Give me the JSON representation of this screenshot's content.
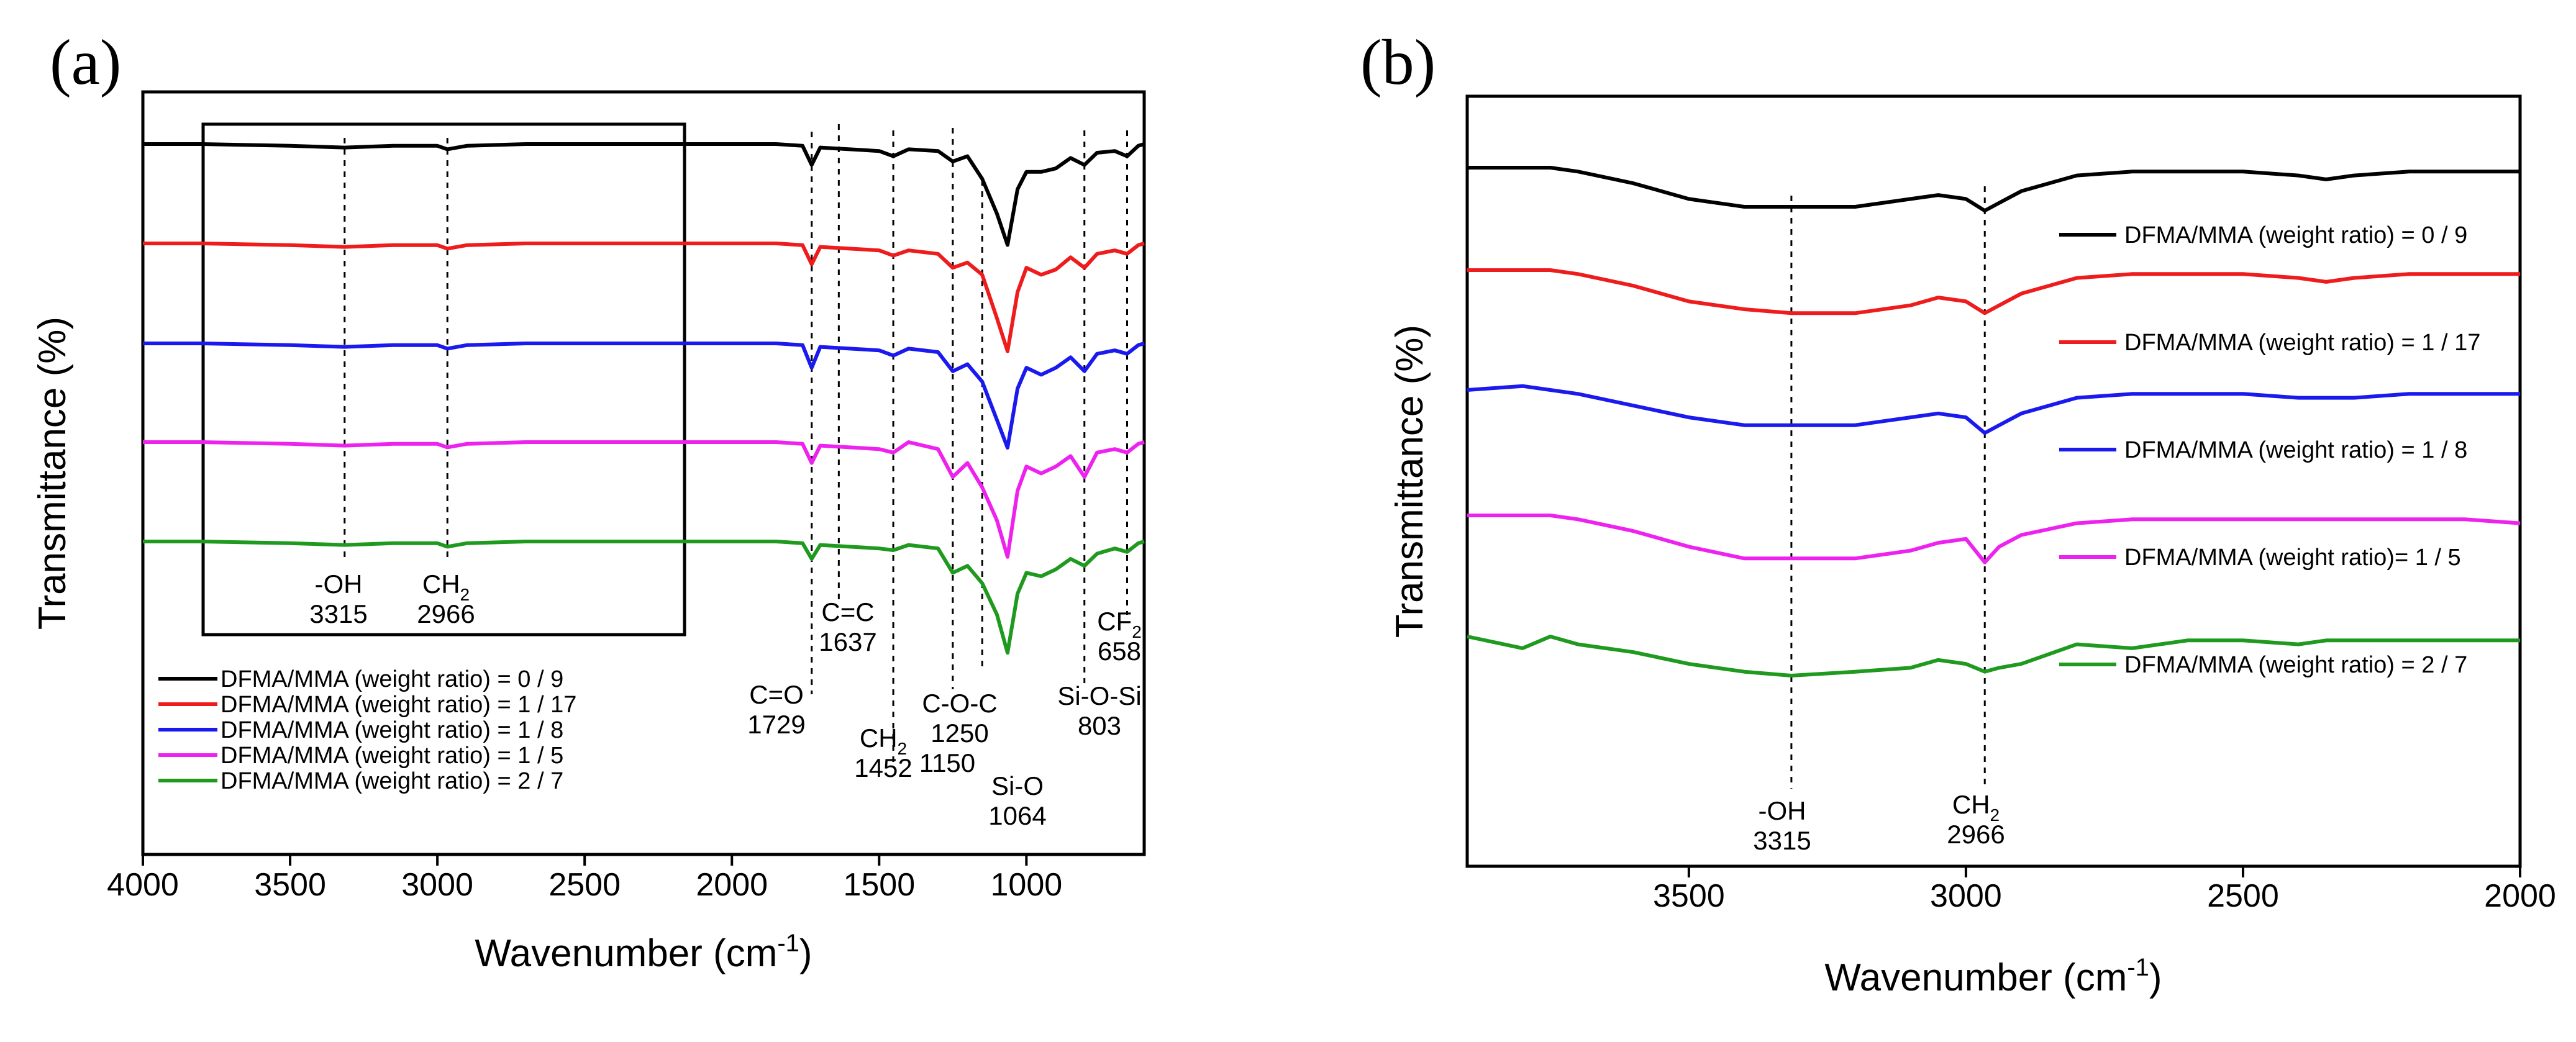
{
  "panels": {
    "a": {
      "label": "(a)",
      "xlabel_main": "Wavenumber (cm",
      "xlabel_sup": "-1",
      "xlabel_end": ")",
      "ylabel": "Transmittance (%)",
      "legend": [
        "DFMA/MMA (weight ratio) = 0 / 9",
        "DFMA/MMA (weight ratio) = 1 / 17",
        "DFMA/MMA (weight ratio) = 1 / 8",
        "DFMA/MMA (weight ratio) = 1 / 5",
        "DFMA/MMA (weight ratio) = 2 / 7"
      ],
      "annotations": [
        {
          "name": "-OH",
          "value": "3315",
          "wavenumber": 3315
        },
        {
          "name": "CH",
          "sub": "2",
          "value": "2966",
          "wavenumber": 2966
        },
        {
          "name": "C=C",
          "value": "1637",
          "wavenumber": 1637
        },
        {
          "name": "C=O",
          "value": "1729",
          "wavenumber": 1729
        },
        {
          "name": "CH",
          "sub": "2",
          "value": "1452",
          "wavenumber": 1452
        },
        {
          "name": "C-O-C",
          "value": "1250",
          "value2": "1150",
          "wavenumber": 1250
        },
        {
          "name": "Si-O",
          "value": "1064",
          "wavenumber": 1064
        },
        {
          "name": "Si-O-Si",
          "value": "803",
          "wavenumber": 803
        },
        {
          "name": "CF",
          "sub": "2",
          "value": "658",
          "wavenumber": 658
        }
      ]
    },
    "b": {
      "label": "(b)",
      "xlabel_main": "Wavenumber (cm",
      "xlabel_sup": "-1",
      "xlabel_end": ")",
      "ylabel": "Transmittance (%)",
      "legend": [
        "DFMA/MMA (weight ratio) = 0 / 9",
        "DFMA/MMA (weight ratio) = 1 / 17",
        "DFMA/MMA (weight ratio) = 1 / 8",
        "DFMA/MMA (weight ratio)= 1 / 5",
        "DFMA/MMA (weight ratio) = 2 / 7"
      ],
      "annotations": [
        {
          "name": "-OH",
          "value": "3315",
          "wavenumber": 3315
        },
        {
          "name": "CH",
          "sub": "2",
          "value": "2966",
          "wavenumber": 2966
        }
      ]
    }
  },
  "chart_data": [
    {
      "type": "line",
      "panel": "a",
      "title": "",
      "xlabel": "Wavenumber (cm-1)",
      "ylabel": "Transmittance (%)",
      "xlim": [
        4000,
        600
      ],
      "x_ticks": [
        4000,
        3500,
        3000,
        2500,
        2000,
        1500,
        1000
      ],
      "y_ticks": [],
      "y_units": "arbitrary, vertically offset traces",
      "peak_markers": [
        3315,
        2966,
        1729,
        1637,
        1452,
        1250,
        1150,
        803,
        658
      ],
      "colors": [
        "#000000",
        "#ee1c1c",
        "#1a1aee",
        "#ee22ee",
        "#1f9a1f"
      ],
      "series": [
        {
          "name": "DFMA/MMA (weight ratio) = 0 / 9",
          "x": [
            4000,
            3800,
            3500,
            3315,
            3150,
            3000,
            2966,
            2900,
            2700,
            2500,
            2000,
            1850,
            1760,
            1729,
            1700,
            1600,
            1500,
            1452,
            1400,
            1300,
            1250,
            1200,
            1150,
            1100,
            1064,
            1030,
            1000,
            950,
            900,
            850,
            803,
            760,
            700,
            658,
            620,
            600
          ],
          "y": [
            100,
            100,
            99,
            98,
            99,
            99,
            97,
            99,
            100,
            100,
            100,
            100,
            99,
            88,
            98,
            97,
            96,
            93,
            97,
            96,
            90,
            93,
            80,
            60,
            42,
            74,
            84,
            84,
            86,
            92,
            88,
            95,
            96,
            93,
            99,
            100
          ]
        },
        {
          "name": "DFMA/MMA (weight ratio) = 1 / 17",
          "x": [
            4000,
            3800,
            3500,
            3315,
            3150,
            3000,
            2966,
            2900,
            2700,
            2500,
            2000,
            1850,
            1760,
            1729,
            1700,
            1600,
            1500,
            1452,
            1400,
            1300,
            1250,
            1200,
            1150,
            1100,
            1064,
            1030,
            1000,
            950,
            900,
            850,
            803,
            760,
            700,
            658,
            620,
            600
          ],
          "y": [
            100,
            100,
            99,
            98,
            99,
            99,
            97,
            99,
            100,
            100,
            100,
            100,
            99,
            88,
            98,
            97,
            96,
            93,
            96,
            94,
            86,
            89,
            82,
            57,
            38,
            72,
            86,
            82,
            85,
            92,
            86,
            94,
            96,
            94,
            99,
            100
          ]
        },
        {
          "name": "DFMA/MMA (weight ratio) = 1 / 8",
          "x": [
            4000,
            3800,
            3500,
            3315,
            3150,
            3000,
            2966,
            2900,
            2700,
            2500,
            2000,
            1850,
            1760,
            1729,
            1700,
            1600,
            1500,
            1452,
            1400,
            1300,
            1250,
            1200,
            1150,
            1100,
            1064,
            1030,
            1000,
            950,
            900,
            850,
            803,
            760,
            700,
            658,
            620,
            600
          ],
          "y": [
            100,
            100,
            99,
            98,
            99,
            99,
            97,
            99,
            100,
            100,
            100,
            100,
            99,
            86,
            98,
            97,
            96,
            93,
            97,
            95,
            84,
            88,
            78,
            56,
            40,
            74,
            86,
            82,
            86,
            92,
            84,
            94,
            96,
            94,
            99,
            100
          ]
        },
        {
          "name": "DFMA/MMA (weight ratio) = 1 / 5",
          "x": [
            4000,
            3800,
            3500,
            3315,
            3150,
            3000,
            2966,
            2900,
            2700,
            2500,
            2000,
            1850,
            1760,
            1729,
            1700,
            1600,
            1500,
            1452,
            1400,
            1300,
            1250,
            1200,
            1150,
            1100,
            1064,
            1030,
            1000,
            950,
            900,
            850,
            803,
            760,
            700,
            658,
            620,
            600
          ],
          "y": [
            100,
            100,
            99,
            98,
            99,
            99,
            97,
            99,
            100,
            100,
            100,
            100,
            99,
            88,
            98,
            97,
            96,
            94,
            100,
            96,
            80,
            88,
            74,
            55,
            34,
            72,
            86,
            82,
            86,
            92,
            80,
            94,
            96,
            94,
            99,
            100
          ]
        },
        {
          "name": "DFMA/MMA (weight ratio) = 2 / 7",
          "x": [
            4000,
            3800,
            3500,
            3315,
            3150,
            3000,
            2966,
            2900,
            2700,
            2500,
            2000,
            1850,
            1760,
            1729,
            1700,
            1600,
            1500,
            1452,
            1400,
            1300,
            1250,
            1200,
            1150,
            1100,
            1064,
            1030,
            1000,
            950,
            900,
            850,
            803,
            760,
            700,
            658,
            620,
            600
          ],
          "y": [
            100,
            100,
            99,
            98,
            99,
            99,
            97,
            99,
            100,
            100,
            100,
            100,
            99,
            90,
            98,
            97,
            96,
            95,
            98,
            96,
            82,
            86,
            76,
            58,
            36,
            70,
            82,
            80,
            84,
            90,
            86,
            93,
            96,
            94,
            99,
            100
          ]
        }
      ]
    },
    {
      "type": "line",
      "panel": "b",
      "title": "",
      "xlabel": "Wavenumber (cm-1)",
      "ylabel": "Transmittance (%)",
      "xlim": [
        3900,
        2000
      ],
      "x_ticks": [
        3500,
        3000,
        2500,
        2000
      ],
      "y_ticks": [],
      "y_units": "arbitrary, vertically offset traces",
      "peak_markers": [
        3315,
        2966
      ],
      "colors": [
        "#000000",
        "#ee1c1c",
        "#1a1aee",
        "#ee22ee",
        "#1f9a1f"
      ],
      "series": [
        {
          "name": "DFMA/MMA (weight ratio) = 0 / 9",
          "x": [
            3900,
            3800,
            3750,
            3700,
            3600,
            3500,
            3400,
            3315,
            3200,
            3100,
            3050,
            3000,
            2966,
            2940,
            2900,
            2800,
            2700,
            2600,
            2500,
            2400,
            2350,
            2300,
            2200,
            2100,
            2000
          ],
          "y": [
            100,
            100,
            100,
            99,
            96,
            92,
            90,
            90,
            90,
            92,
            93,
            92,
            89,
            91,
            94,
            98,
            99,
            99,
            99,
            98,
            97,
            98,
            99,
            99,
            99
          ]
        },
        {
          "name": "DFMA/MMA (weight ratio) = 1 / 17",
          "x": [
            3900,
            3800,
            3750,
            3700,
            3600,
            3500,
            3400,
            3315,
            3200,
            3100,
            3050,
            3000,
            2966,
            2940,
            2900,
            2800,
            2700,
            2600,
            2500,
            2400,
            2350,
            2300,
            2200,
            2100,
            2000
          ],
          "y": [
            100,
            100,
            100,
            99,
            96,
            92,
            90,
            89,
            89,
            91,
            93,
            92,
            89,
            91,
            94,
            98,
            99,
            99,
            99,
            98,
            97,
            98,
            99,
            99,
            99
          ]
        },
        {
          "name": "DFMA/MMA (weight ratio) = 1 / 8",
          "x": [
            3900,
            3800,
            3750,
            3700,
            3600,
            3500,
            3400,
            3315,
            3200,
            3100,
            3050,
            3000,
            2966,
            2940,
            2900,
            2800,
            2700,
            2600,
            2500,
            2400,
            2350,
            2300,
            2200,
            2100,
            2000
          ],
          "y": [
            100,
            101,
            100,
            99,
            96,
            93,
            91,
            91,
            91,
            93,
            94,
            93,
            89,
            91,
            94,
            98,
            99,
            99,
            99,
            98,
            98,
            98,
            99,
            99,
            99
          ]
        },
        {
          "name": "DFMA/MMA (weight ratio)= 1 / 5",
          "x": [
            3900,
            3800,
            3750,
            3700,
            3600,
            3500,
            3400,
            3315,
            3200,
            3100,
            3050,
            3000,
            2966,
            2940,
            2900,
            2800,
            2700,
            2600,
            2500,
            2400,
            2350,
            2300,
            2200,
            2100,
            2000
          ],
          "y": [
            100,
            100,
            100,
            99,
            96,
            92,
            89,
            89,
            89,
            91,
            93,
            94,
            88,
            92,
            95,
            98,
            99,
            99,
            99,
            99,
            99,
            99,
            99,
            99,
            98
          ]
        },
        {
          "name": "DFMA/MMA (weight ratio) = 2 / 7",
          "x": [
            3900,
            3800,
            3750,
            3700,
            3600,
            3500,
            3400,
            3315,
            3200,
            3100,
            3050,
            3000,
            2966,
            2940,
            2900,
            2800,
            2700,
            2600,
            2500,
            2400,
            2350,
            2300,
            2200,
            2100,
            2000
          ],
          "y": [
            100,
            97,
            100,
            98,
            96,
            93,
            91,
            90,
            91,
            92,
            94,
            93,
            91,
            92,
            93,
            98,
            97,
            99,
            99,
            98,
            99,
            99,
            99,
            99,
            99
          ]
        }
      ]
    }
  ]
}
